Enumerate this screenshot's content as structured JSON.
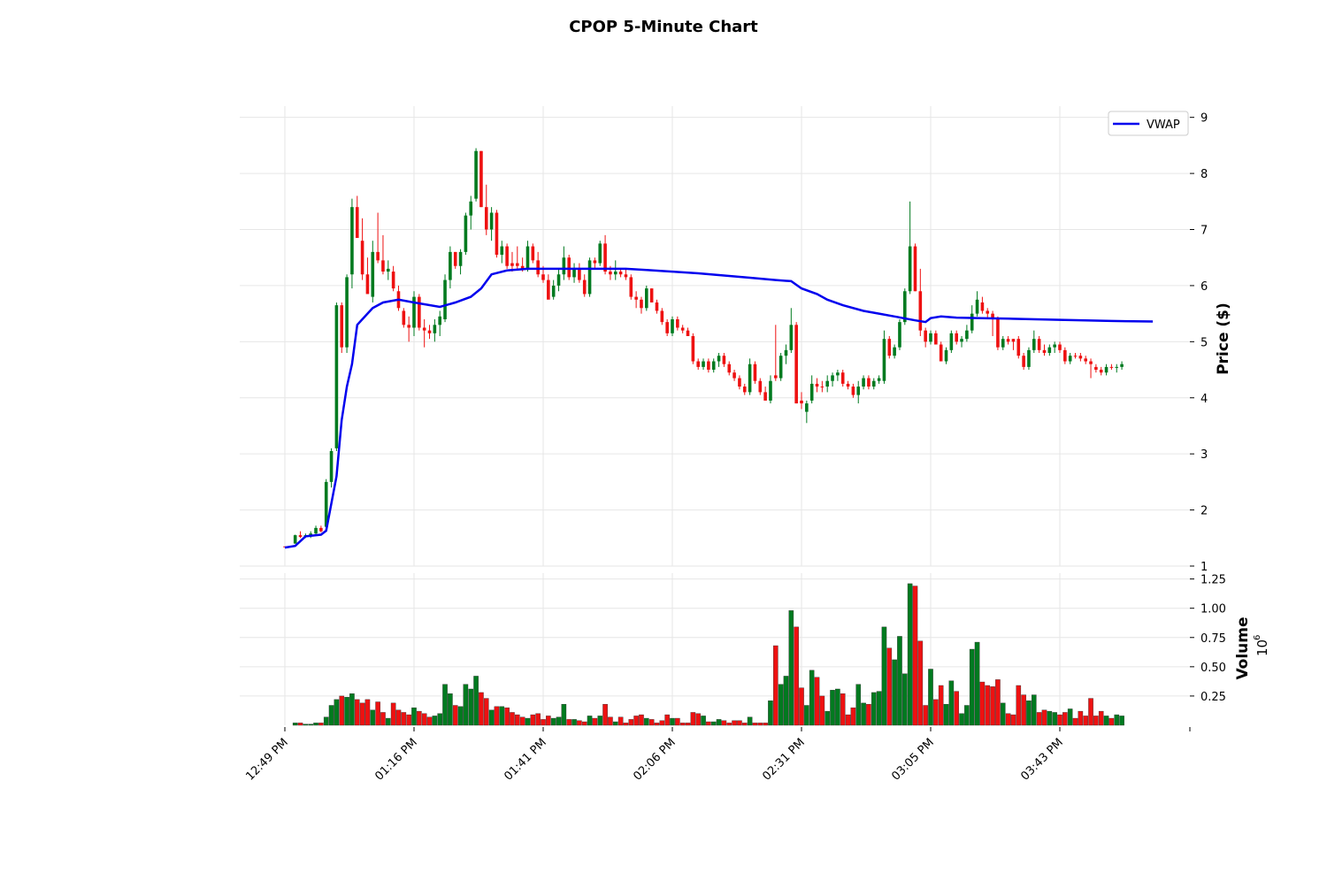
{
  "chart_data": {
    "type": "candlestick",
    "title": "CPOP 5-Minute Chart",
    "price_panel": {
      "ylabel": "Price ($)",
      "yticks": [
        1,
        2,
        3,
        4,
        5,
        6,
        7,
        8,
        9
      ],
      "ylim": [
        1,
        9.2
      ],
      "grid": true
    },
    "volume_panel": {
      "ylabel": "Volume",
      "multiplier_base": "10",
      "multiplier_exp": "6",
      "yticks": [
        0.25,
        0.5,
        0.75,
        1.0,
        1.25
      ],
      "ytick_labels": [
        "0.25",
        "0.50",
        "0.75",
        "1.00",
        "1.25"
      ],
      "ylim": [
        0,
        1.3
      ],
      "grid": true
    },
    "xtick_labels": [
      {
        "index": 0,
        "label": "12:49 PM"
      },
      {
        "index": 25,
        "label": "01:16 PM"
      },
      {
        "index": 50,
        "label": "01:41 PM"
      },
      {
        "index": 75,
        "label": "02:06 PM"
      },
      {
        "index": 100,
        "label": "02:31 PM"
      },
      {
        "index": 125,
        "label": "03:05 PM"
      },
      {
        "index": 150,
        "label": "03:43 PM"
      }
    ],
    "legend": {
      "placement": "top-right",
      "entries": [
        {
          "name": "VWAP",
          "color": "#0000ee"
        }
      ]
    },
    "colors": {
      "up": "#007a1f",
      "down": "#ee1111",
      "vwap": "#0000ee",
      "grid": "#e6e6e6"
    },
    "candles": [
      [
        1.35,
        1.35,
        1.35,
        1.35,
        0.0,
        "down"
      ],
      [
        1.35,
        1.36,
        1.34,
        1.35,
        0.0,
        "down"
      ],
      [
        1.4,
        1.56,
        1.4,
        1.55,
        0.02,
        "up"
      ],
      [
        1.55,
        1.62,
        1.5,
        1.52,
        0.02,
        "down"
      ],
      [
        1.52,
        1.58,
        1.5,
        1.55,
        0.01,
        "up"
      ],
      [
        1.55,
        1.62,
        1.5,
        1.58,
        0.01,
        "up"
      ],
      [
        1.58,
        1.72,
        1.55,
        1.68,
        0.02,
        "up"
      ],
      [
        1.68,
        1.72,
        1.6,
        1.62,
        0.02,
        "down"
      ],
      [
        1.7,
        2.55,
        1.65,
        2.5,
        0.07,
        "up"
      ],
      [
        2.5,
        3.1,
        2.4,
        3.05,
        0.17,
        "up"
      ],
      [
        3.1,
        5.7,
        3.05,
        5.65,
        0.22,
        "up"
      ],
      [
        5.65,
        5.7,
        4.8,
        4.9,
        0.25,
        "down"
      ],
      [
        4.9,
        6.2,
        4.8,
        6.15,
        0.24,
        "up"
      ],
      [
        6.2,
        7.55,
        5.95,
        7.4,
        0.27,
        "up"
      ],
      [
        7.4,
        7.6,
        6.9,
        6.85,
        0.22,
        "down"
      ],
      [
        6.8,
        7.2,
        6.1,
        6.2,
        0.19,
        "down"
      ],
      [
        6.2,
        6.5,
        5.9,
        5.85,
        0.22,
        "down"
      ],
      [
        5.8,
        6.8,
        5.7,
        6.6,
        0.13,
        "up"
      ],
      [
        6.6,
        7.3,
        6.4,
        6.45,
        0.2,
        "down"
      ],
      [
        6.45,
        6.9,
        6.2,
        6.25,
        0.11,
        "down"
      ],
      [
        6.25,
        6.45,
        6.1,
        6.3,
        0.06,
        "up"
      ],
      [
        6.25,
        6.35,
        5.9,
        5.95,
        0.19,
        "down"
      ],
      [
        5.9,
        6.0,
        5.55,
        5.6,
        0.13,
        "down"
      ],
      [
        5.55,
        5.6,
        5.25,
        5.3,
        0.11,
        "down"
      ],
      [
        5.3,
        5.45,
        5.0,
        5.25,
        0.09,
        "down"
      ],
      [
        5.25,
        5.9,
        5.1,
        5.8,
        0.15,
        "up"
      ],
      [
        5.8,
        5.85,
        5.2,
        5.25,
        0.12,
        "down"
      ],
      [
        5.25,
        5.4,
        4.9,
        5.2,
        0.1,
        "down"
      ],
      [
        5.2,
        5.3,
        5.05,
        5.15,
        0.07,
        "down"
      ],
      [
        5.15,
        5.4,
        5.0,
        5.3,
        0.08,
        "up"
      ],
      [
        5.3,
        5.55,
        5.1,
        5.45,
        0.1,
        "up"
      ],
      [
        5.4,
        6.2,
        5.35,
        6.1,
        0.35,
        "up"
      ],
      [
        6.1,
        6.7,
        5.95,
        6.6,
        0.27,
        "up"
      ],
      [
        6.6,
        6.6,
        6.3,
        6.35,
        0.17,
        "down"
      ],
      [
        6.35,
        6.65,
        6.2,
        6.6,
        0.16,
        "up"
      ],
      [
        6.6,
        7.3,
        6.55,
        7.25,
        0.35,
        "up"
      ],
      [
        7.25,
        7.6,
        7.0,
        7.5,
        0.31,
        "up"
      ],
      [
        7.55,
        8.45,
        7.5,
        8.4,
        0.42,
        "up"
      ],
      [
        8.4,
        8.4,
        7.4,
        7.4,
        0.28,
        "down"
      ],
      [
        7.4,
        7.8,
        6.9,
        7.0,
        0.23,
        "down"
      ],
      [
        7.0,
        7.4,
        6.8,
        7.3,
        0.13,
        "up"
      ],
      [
        7.3,
        7.35,
        6.5,
        6.55,
        0.16,
        "down"
      ],
      [
        6.55,
        6.8,
        6.4,
        6.7,
        0.16,
        "up"
      ],
      [
        6.7,
        6.75,
        6.3,
        6.35,
        0.15,
        "down"
      ],
      [
        6.35,
        6.6,
        6.25,
        6.4,
        0.11,
        "down"
      ],
      [
        6.4,
        6.7,
        6.3,
        6.35,
        0.09,
        "down"
      ],
      [
        6.35,
        6.5,
        6.25,
        6.3,
        0.07,
        "down"
      ],
      [
        6.3,
        6.8,
        6.25,
        6.7,
        0.06,
        "up"
      ],
      [
        6.7,
        6.75,
        6.4,
        6.45,
        0.09,
        "down"
      ],
      [
        6.45,
        6.6,
        6.15,
        6.2,
        0.1,
        "down"
      ],
      [
        6.2,
        6.35,
        6.05,
        6.1,
        0.05,
        "down"
      ],
      [
        6.1,
        6.2,
        5.8,
        5.75,
        0.08,
        "down"
      ],
      [
        5.8,
        6.1,
        5.75,
        6.0,
        0.06,
        "up"
      ],
      [
        6.0,
        6.3,
        5.9,
        6.2,
        0.07,
        "up"
      ],
      [
        6.2,
        6.7,
        6.1,
        6.5,
        0.18,
        "up"
      ],
      [
        6.5,
        6.55,
        6.1,
        6.15,
        0.05,
        "down"
      ],
      [
        6.15,
        6.4,
        6.05,
        6.3,
        0.05,
        "up"
      ],
      [
        6.3,
        6.4,
        6.05,
        6.1,
        0.04,
        "down"
      ],
      [
        6.1,
        6.2,
        5.8,
        5.85,
        0.03,
        "down"
      ],
      [
        5.85,
        6.5,
        5.8,
        6.45,
        0.08,
        "up"
      ],
      [
        6.45,
        6.5,
        6.3,
        6.4,
        0.06,
        "down"
      ],
      [
        6.4,
        6.8,
        6.35,
        6.75,
        0.08,
        "up"
      ],
      [
        6.75,
        6.9,
        6.2,
        6.25,
        0.18,
        "down"
      ],
      [
        6.25,
        6.35,
        6.1,
        6.2,
        0.07,
        "down"
      ],
      [
        6.2,
        6.45,
        6.1,
        6.25,
        0.03,
        "up"
      ],
      [
        6.25,
        6.3,
        6.15,
        6.2,
        0.07,
        "down"
      ],
      [
        6.2,
        6.3,
        6.1,
        6.15,
        0.02,
        "down"
      ],
      [
        6.15,
        6.2,
        5.75,
        5.8,
        0.05,
        "down"
      ],
      [
        5.8,
        5.9,
        5.6,
        5.75,
        0.08,
        "down"
      ],
      [
        5.75,
        5.8,
        5.5,
        5.6,
        0.09,
        "down"
      ],
      [
        5.6,
        6.0,
        5.55,
        5.95,
        0.06,
        "up"
      ],
      [
        5.95,
        5.95,
        5.7,
        5.7,
        0.05,
        "down"
      ],
      [
        5.7,
        5.75,
        5.5,
        5.55,
        0.02,
        "down"
      ],
      [
        5.55,
        5.6,
        5.3,
        5.35,
        0.04,
        "down"
      ],
      [
        5.35,
        5.4,
        5.1,
        5.15,
        0.09,
        "down"
      ],
      [
        5.15,
        5.45,
        5.1,
        5.4,
        0.06,
        "up"
      ],
      [
        5.4,
        5.45,
        5.2,
        5.25,
        0.06,
        "down"
      ],
      [
        5.25,
        5.3,
        5.15,
        5.2,
        0.02,
        "down"
      ],
      [
        5.2,
        5.25,
        5.1,
        5.1,
        0.02,
        "down"
      ],
      [
        5.1,
        5.15,
        4.6,
        4.65,
        0.11,
        "down"
      ],
      [
        4.65,
        4.7,
        4.5,
        4.55,
        0.1,
        "down"
      ],
      [
        4.55,
        4.7,
        4.5,
        4.65,
        0.08,
        "up"
      ],
      [
        4.65,
        4.7,
        4.45,
        4.5,
        0.03,
        "down"
      ],
      [
        4.5,
        4.7,
        4.45,
        4.65,
        0.03,
        "up"
      ],
      [
        4.65,
        4.8,
        4.55,
        4.75,
        0.05,
        "up"
      ],
      [
        4.75,
        4.8,
        4.55,
        4.6,
        0.04,
        "down"
      ],
      [
        4.6,
        4.65,
        4.4,
        4.45,
        0.02,
        "down"
      ],
      [
        4.45,
        4.5,
        4.3,
        4.35,
        0.04,
        "down"
      ],
      [
        4.35,
        4.4,
        4.15,
        4.2,
        0.04,
        "down"
      ],
      [
        4.2,
        4.25,
        4.05,
        4.1,
        0.02,
        "down"
      ],
      [
        4.1,
        4.7,
        4.05,
        4.6,
        0.07,
        "up"
      ],
      [
        4.6,
        4.65,
        4.25,
        4.3,
        0.02,
        "down"
      ],
      [
        4.3,
        4.35,
        4.05,
        4.1,
        0.02,
        "down"
      ],
      [
        4.1,
        4.2,
        3.95,
        3.95,
        0.02,
        "down"
      ],
      [
        3.95,
        4.4,
        3.9,
        4.3,
        0.21,
        "up"
      ],
      [
        4.4,
        5.3,
        4.3,
        4.35,
        0.68,
        "down"
      ],
      [
        4.35,
        4.8,
        4.3,
        4.75,
        0.35,
        "up"
      ],
      [
        4.75,
        4.95,
        4.6,
        4.85,
        0.42,
        "up"
      ],
      [
        4.85,
        5.6,
        4.8,
        5.3,
        0.98,
        "up"
      ],
      [
        5.3,
        5.35,
        3.9,
        3.9,
        0.84,
        "down"
      ],
      [
        3.9,
        4.1,
        3.8,
        3.95,
        0.32,
        "down"
      ],
      [
        3.75,
        3.95,
        3.55,
        3.9,
        0.17,
        "up"
      ],
      [
        3.95,
        4.4,
        3.9,
        4.25,
        0.47,
        "up"
      ],
      [
        4.25,
        4.35,
        4.1,
        4.2,
        0.41,
        "down"
      ],
      [
        4.2,
        4.3,
        4.1,
        4.2,
        0.25,
        "down"
      ],
      [
        4.2,
        4.4,
        4.1,
        4.3,
        0.12,
        "up"
      ],
      [
        4.3,
        4.45,
        4.2,
        4.4,
        0.3,
        "up"
      ],
      [
        4.4,
        4.5,
        4.3,
        4.45,
        0.31,
        "up"
      ],
      [
        4.45,
        4.5,
        4.2,
        4.25,
        0.27,
        "down"
      ],
      [
        4.25,
        4.3,
        4.15,
        4.2,
        0.09,
        "down"
      ],
      [
        4.2,
        4.25,
        4.0,
        4.05,
        0.15,
        "down"
      ],
      [
        4.05,
        4.3,
        3.9,
        4.2,
        0.35,
        "up"
      ],
      [
        4.2,
        4.4,
        4.15,
        4.35,
        0.19,
        "up"
      ],
      [
        4.35,
        4.4,
        4.15,
        4.2,
        0.18,
        "down"
      ],
      [
        4.2,
        4.35,
        4.15,
        4.3,
        0.28,
        "up"
      ],
      [
        4.3,
        4.4,
        4.25,
        4.35,
        0.29,
        "up"
      ],
      [
        4.3,
        5.2,
        4.25,
        5.05,
        0.84,
        "up"
      ],
      [
        5.05,
        5.1,
        4.7,
        4.75,
        0.66,
        "down"
      ],
      [
        4.75,
        4.95,
        4.7,
        4.9,
        0.56,
        "up"
      ],
      [
        4.9,
        5.4,
        4.85,
        5.35,
        0.76,
        "up"
      ],
      [
        5.35,
        5.95,
        5.3,
        5.9,
        0.44,
        "up"
      ],
      [
        5.9,
        7.5,
        5.85,
        6.7,
        1.21,
        "up"
      ],
      [
        6.7,
        6.75,
        5.9,
        5.9,
        1.19,
        "down"
      ],
      [
        5.9,
        6.3,
        5.1,
        5.2,
        0.72,
        "down"
      ],
      [
        5.2,
        5.25,
        4.9,
        5.0,
        0.17,
        "down"
      ],
      [
        5.0,
        5.2,
        4.95,
        5.15,
        0.48,
        "up"
      ],
      [
        5.15,
        5.2,
        4.95,
        4.95,
        0.22,
        "down"
      ],
      [
        4.95,
        5.0,
        4.65,
        4.65,
        0.34,
        "down"
      ],
      [
        4.65,
        4.9,
        4.6,
        4.85,
        0.18,
        "up"
      ],
      [
        4.85,
        5.2,
        4.8,
        5.15,
        0.38,
        "up"
      ],
      [
        5.15,
        5.2,
        4.95,
        5.0,
        0.29,
        "down"
      ],
      [
        5.0,
        5.1,
        4.9,
        5.05,
        0.1,
        "up"
      ],
      [
        5.05,
        5.3,
        5.0,
        5.2,
        0.17,
        "up"
      ],
      [
        5.2,
        5.65,
        5.15,
        5.5,
        0.65,
        "up"
      ],
      [
        5.5,
        5.9,
        5.45,
        5.75,
        0.71,
        "up"
      ],
      [
        5.7,
        5.8,
        5.5,
        5.55,
        0.37,
        "down"
      ],
      [
        5.55,
        5.6,
        5.4,
        5.5,
        0.34,
        "down"
      ],
      [
        5.5,
        5.55,
        5.1,
        5.4,
        0.33,
        "down"
      ],
      [
        5.4,
        5.45,
        4.85,
        4.9,
        0.39,
        "down"
      ],
      [
        4.9,
        5.1,
        4.85,
        5.05,
        0.19,
        "up"
      ],
      [
        5.05,
        5.1,
        4.95,
        5.0,
        0.1,
        "down"
      ],
      [
        5.0,
        5.05,
        4.85,
        5.05,
        0.09,
        "down"
      ],
      [
        5.05,
        5.1,
        4.7,
        4.75,
        0.34,
        "down"
      ],
      [
        4.75,
        4.8,
        4.5,
        4.55,
        0.26,
        "down"
      ],
      [
        4.55,
        4.9,
        4.5,
        4.85,
        0.21,
        "up"
      ],
      [
        4.85,
        5.2,
        4.8,
        5.05,
        0.26,
        "up"
      ],
      [
        5.05,
        5.1,
        4.8,
        4.85,
        0.11,
        "down"
      ],
      [
        4.85,
        4.95,
        4.75,
        4.8,
        0.13,
        "down"
      ],
      [
        4.8,
        4.95,
        4.75,
        4.9,
        0.12,
        "up"
      ],
      [
        4.9,
        5.0,
        4.8,
        4.95,
        0.11,
        "up"
      ],
      [
        4.95,
        5.0,
        4.8,
        4.85,
        0.09,
        "down"
      ],
      [
        4.85,
        4.9,
        4.6,
        4.65,
        0.11,
        "down"
      ],
      [
        4.65,
        4.8,
        4.6,
        4.75,
        0.14,
        "up"
      ],
      [
        4.75,
        4.8,
        4.7,
        4.75,
        0.06,
        "down"
      ],
      [
        4.75,
        4.8,
        4.65,
        4.7,
        0.12,
        "down"
      ],
      [
        4.7,
        4.75,
        4.6,
        4.65,
        0.08,
        "down"
      ],
      [
        4.65,
        4.7,
        4.35,
        4.6,
        0.23,
        "down"
      ],
      [
        4.55,
        4.6,
        4.45,
        4.5,
        0.08,
        "down"
      ],
      [
        4.5,
        4.55,
        4.4,
        4.45,
        0.12,
        "down"
      ],
      [
        4.45,
        4.6,
        4.4,
        4.55,
        0.08,
        "up"
      ],
      [
        4.55,
        4.6,
        4.5,
        4.55,
        0.06,
        "down"
      ],
      [
        4.55,
        4.6,
        4.45,
        4.55,
        0.09,
        "up"
      ],
      [
        4.55,
        4.65,
        4.5,
        4.6,
        0.08,
        "up"
      ]
    ],
    "vwap": [
      [
        0,
        1.33
      ],
      [
        2,
        1.36
      ],
      [
        4,
        1.53
      ],
      [
        7,
        1.56
      ],
      [
        8,
        1.63
      ],
      [
        10,
        2.6
      ],
      [
        11,
        3.6
      ],
      [
        12,
        4.2
      ],
      [
        13,
        4.6
      ],
      [
        14,
        5.3
      ],
      [
        16,
        5.5
      ],
      [
        17,
        5.6
      ],
      [
        19,
        5.7
      ],
      [
        22,
        5.75
      ],
      [
        25,
        5.7
      ],
      [
        30,
        5.62
      ],
      [
        33,
        5.7
      ],
      [
        36,
        5.8
      ],
      [
        38,
        5.95
      ],
      [
        40,
        6.2
      ],
      [
        43,
        6.27
      ],
      [
        47,
        6.3
      ],
      [
        55,
        6.3
      ],
      [
        62,
        6.3
      ],
      [
        66,
        6.3
      ],
      [
        70,
        6.28
      ],
      [
        75,
        6.25
      ],
      [
        80,
        6.22
      ],
      [
        85,
        6.18
      ],
      [
        90,
        6.14
      ],
      [
        95,
        6.1
      ],
      [
        98,
        6.08
      ],
      [
        100,
        5.95
      ],
      [
        103,
        5.85
      ],
      [
        105,
        5.75
      ],
      [
        108,
        5.65
      ],
      [
        112,
        5.55
      ],
      [
        115,
        5.5
      ],
      [
        118,
        5.45
      ],
      [
        122,
        5.38
      ],
      [
        124,
        5.35
      ],
      [
        125,
        5.42
      ],
      [
        127,
        5.45
      ],
      [
        130,
        5.43
      ],
      [
        135,
        5.42
      ],
      [
        140,
        5.41
      ],
      [
        150,
        5.39
      ],
      [
        160,
        5.37
      ],
      [
        168,
        5.36
      ]
    ]
  }
}
